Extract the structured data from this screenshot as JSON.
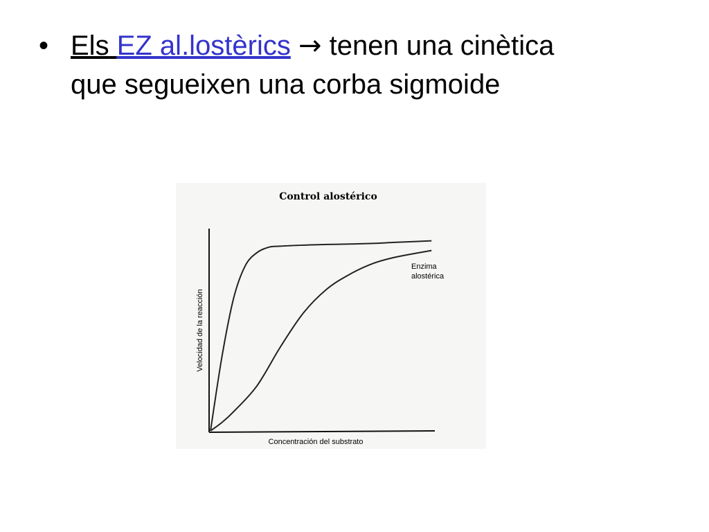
{
  "slide": {
    "bullet": "•",
    "line1_a": "Els",
    "line1_space": " ",
    "line1_link": "EZ al.lostèrics",
    "arrow": "→",
    "line1_b": "tenen una cinètica",
    "line2": "que segueixen una corba sigmoide"
  },
  "chart_data": {
    "type": "line",
    "title": "Control alostérico",
    "xlabel": "Concentración del substrato",
    "ylabel": "Velocidad de la reacción",
    "xlim": [
      0,
      10
    ],
    "ylim": [
      0,
      10
    ],
    "grid": false,
    "series": [
      {
        "name": "",
        "x": [
          0,
          0.5,
          1.0,
          1.5,
          2.0,
          2.5,
          3.0,
          4.0,
          5.0,
          6.0,
          7.0,
          8.0,
          9.5
        ],
        "y": [
          0,
          3.5,
          6.2,
          7.7,
          8.3,
          8.55,
          8.6,
          8.65,
          8.68,
          8.7,
          8.73,
          8.78,
          8.85
        ]
      },
      {
        "name": "Enzima alostérica",
        "x": [
          0,
          0.5,
          1.0,
          2.0,
          3.0,
          4.0,
          5.0,
          6.0,
          7.0,
          8.0,
          9.5
        ],
        "y": [
          0,
          0.4,
          0.9,
          2.1,
          3.9,
          5.5,
          6.6,
          7.3,
          7.8,
          8.1,
          8.4
        ]
      }
    ]
  }
}
